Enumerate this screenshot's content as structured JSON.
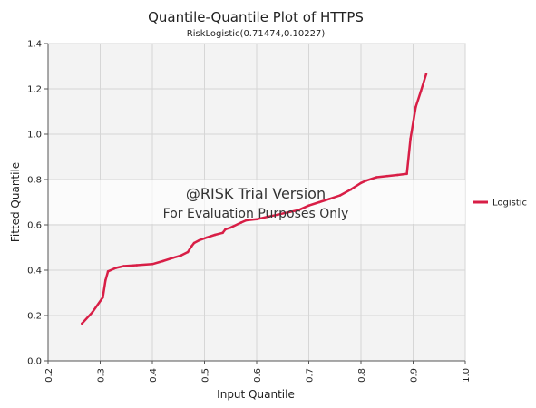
{
  "chart_data": {
    "type": "line",
    "title": "Quantile-Quantile Plot of HTTPS",
    "subtitle": "RiskLogistic(0.71474,0.10227)",
    "xlabel": "Input Quantile",
    "ylabel": "Fitted Quantile",
    "xlim": [
      0.2,
      1.0
    ],
    "ylim": [
      0.0,
      1.4
    ],
    "x_ticks": [
      "0.2",
      "0.3",
      "0.4",
      "0.5",
      "0.6",
      "0.7",
      "0.8",
      "0.9",
      "1.0"
    ],
    "y_ticks": [
      "0.0",
      "0.2",
      "0.4",
      "0.6",
      "0.8",
      "1.0",
      "1.2",
      "1.4"
    ],
    "grid": true,
    "legend_position": "right",
    "series": [
      {
        "name": "Logistic",
        "color": "#d81e46",
        "x": [
          0.265,
          0.285,
          0.305,
          0.31,
          0.315,
          0.33,
          0.345,
          0.37,
          0.4,
          0.42,
          0.44,
          0.455,
          0.468,
          0.475,
          0.48,
          0.49,
          0.505,
          0.52,
          0.535,
          0.54,
          0.55,
          0.57,
          0.58,
          0.6,
          0.62,
          0.64,
          0.66,
          0.68,
          0.7,
          0.72,
          0.74,
          0.76,
          0.78,
          0.8,
          0.81,
          0.83,
          0.85,
          0.87,
          0.888,
          0.895,
          0.905,
          0.915,
          0.925
        ],
        "y": [
          0.165,
          0.215,
          0.28,
          0.355,
          0.395,
          0.41,
          0.418,
          0.422,
          0.427,
          0.44,
          0.455,
          0.465,
          0.48,
          0.505,
          0.52,
          0.532,
          0.545,
          0.556,
          0.565,
          0.58,
          0.588,
          0.61,
          0.62,
          0.625,
          0.635,
          0.645,
          0.655,
          0.665,
          0.685,
          0.7,
          0.715,
          0.73,
          0.755,
          0.785,
          0.795,
          0.81,
          0.815,
          0.82,
          0.825,
          0.98,
          1.12,
          1.19,
          1.265
        ]
      }
    ]
  },
  "watermark": {
    "line1": "@RISK Trial Version",
    "line2": "For Evaluation Purposes Only"
  }
}
